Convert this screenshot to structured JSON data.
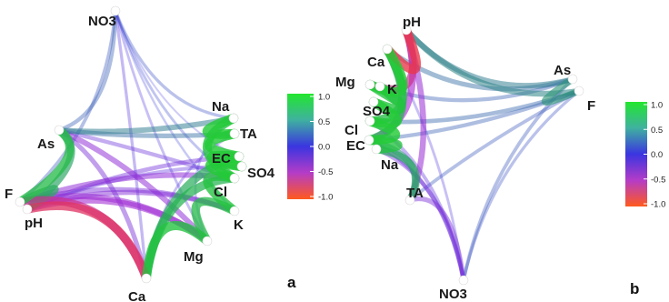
{
  "panels": [
    {
      "id": "a",
      "letter": "a",
      "nodes": [
        {
          "id": "NO3",
          "label": "NO3"
        },
        {
          "id": "Na",
          "label": "Na"
        },
        {
          "id": "TA",
          "label": "TA"
        },
        {
          "id": "EC",
          "label": "EC"
        },
        {
          "id": "SO4",
          "label": "SO4"
        },
        {
          "id": "Cl",
          "label": "Cl"
        },
        {
          "id": "K",
          "label": "K"
        },
        {
          "id": "Mg",
          "label": "Mg"
        },
        {
          "id": "Ca",
          "label": "Ca"
        },
        {
          "id": "pH",
          "label": "pH"
        },
        {
          "id": "F",
          "label": "F"
        },
        {
          "id": "As",
          "label": "As"
        }
      ],
      "edges": [
        {
          "from": "NO3",
          "to": "As",
          "r": 0.25
        },
        {
          "from": "NO3",
          "to": "F",
          "r": 0.2
        },
        {
          "from": "NO3",
          "to": "Na",
          "r": 0.15
        },
        {
          "from": "NO3",
          "to": "Cl",
          "r": 0.1
        },
        {
          "from": "NO3",
          "to": "K",
          "r": 0.05
        },
        {
          "from": "NO3",
          "to": "Mg",
          "r": -0.1
        },
        {
          "from": "NO3",
          "to": "Ca",
          "r": -0.15
        },
        {
          "from": "NO3",
          "to": "EC",
          "r": 0.0
        },
        {
          "from": "Na",
          "to": "TA",
          "r": 0.95
        },
        {
          "from": "TA",
          "to": "EC",
          "r": 0.95
        },
        {
          "from": "EC",
          "to": "SO4",
          "r": 0.95
        },
        {
          "from": "SO4",
          "to": "Cl",
          "r": 0.95
        },
        {
          "from": "Cl",
          "to": "K",
          "r": 0.9
        },
        {
          "from": "Na",
          "to": "Cl",
          "r": 0.9
        },
        {
          "from": "K",
          "to": "Mg",
          "r": 0.85
        },
        {
          "from": "Mg",
          "to": "Ca",
          "r": 0.9
        },
        {
          "from": "Ca",
          "to": "Cl",
          "r": 0.8
        },
        {
          "from": "Ca",
          "to": "EC",
          "r": 0.75
        },
        {
          "from": "As",
          "to": "F",
          "r": 0.85
        },
        {
          "from": "As",
          "to": "pH",
          "r": 0.7
        },
        {
          "from": "F",
          "to": "pH",
          "r": 0.75
        },
        {
          "from": "Ca",
          "to": "pH",
          "r": -0.85
        },
        {
          "from": "Ca",
          "to": "F",
          "r": -0.75
        },
        {
          "from": "As",
          "to": "Mg",
          "r": -0.45
        },
        {
          "from": "As",
          "to": "Ca",
          "r": -0.35
        },
        {
          "from": "As",
          "to": "Na",
          "r": 0.45
        },
        {
          "from": "As",
          "to": "TA",
          "r": 0.35
        },
        {
          "from": "As",
          "to": "Cl",
          "r": -0.25
        },
        {
          "from": "F",
          "to": "Cl",
          "r": -0.45
        },
        {
          "from": "F",
          "to": "Mg",
          "r": -0.5
        },
        {
          "from": "F",
          "to": "K",
          "r": -0.35
        },
        {
          "from": "pH",
          "to": "Mg",
          "r": -0.55
        },
        {
          "from": "pH",
          "to": "K",
          "r": -0.4
        },
        {
          "from": "pH",
          "to": "EC",
          "r": -0.3
        },
        {
          "from": "pH",
          "to": "SO4",
          "r": -0.2
        },
        {
          "from": "Na",
          "to": "Mg",
          "r": 0.05
        },
        {
          "from": "TA",
          "to": "Ca",
          "r": -0.1
        }
      ]
    },
    {
      "id": "b",
      "letter": "b",
      "nodes": [
        {
          "id": "pH",
          "label": "pH"
        },
        {
          "id": "As",
          "label": "As"
        },
        {
          "id": "F",
          "label": "F"
        },
        {
          "id": "NO3",
          "label": "NO3"
        },
        {
          "id": "TA",
          "label": "TA"
        },
        {
          "id": "Na",
          "label": "Na"
        },
        {
          "id": "EC",
          "label": "EC"
        },
        {
          "id": "Cl",
          "label": "Cl"
        },
        {
          "id": "SO4",
          "label": "SO4"
        },
        {
          "id": "K",
          "label": "K"
        },
        {
          "id": "Mg",
          "label": "Mg"
        },
        {
          "id": "Ca",
          "label": "Ca"
        }
      ],
      "edges": [
        {
          "from": "Ca",
          "to": "Mg",
          "r": 0.95
        },
        {
          "from": "Mg",
          "to": "K",
          "r": 0.9
        },
        {
          "from": "K",
          "to": "SO4",
          "r": 0.9
        },
        {
          "from": "SO4",
          "to": "Cl",
          "r": 0.95
        },
        {
          "from": "Cl",
          "to": "EC",
          "r": 0.95
        },
        {
          "from": "EC",
          "to": "Na",
          "r": 0.9
        },
        {
          "from": "Ca",
          "to": "Cl",
          "r": 0.85
        },
        {
          "from": "Ca",
          "to": "EC",
          "r": 0.8
        },
        {
          "from": "Na",
          "to": "TA",
          "r": 0.7
        },
        {
          "from": "EC",
          "to": "TA",
          "r": 0.55
        },
        {
          "from": "pH",
          "to": "Ca",
          "r": -0.9
        },
        {
          "from": "pH",
          "to": "Mg",
          "r": -0.75
        },
        {
          "from": "pH",
          "to": "EC",
          "r": -0.6
        },
        {
          "from": "pH",
          "to": "TA",
          "r": -0.5
        },
        {
          "from": "pH",
          "to": "As",
          "r": 0.45
        },
        {
          "from": "pH",
          "to": "F",
          "r": 0.5
        },
        {
          "from": "As",
          "to": "F",
          "r": 0.6
        },
        {
          "from": "As",
          "to": "Ca",
          "r": 0.35
        },
        {
          "from": "As",
          "to": "K",
          "r": 0.25
        },
        {
          "from": "As",
          "to": "NO3",
          "r": 0.2
        },
        {
          "from": "F",
          "to": "Cl",
          "r": 0.3
        },
        {
          "from": "F",
          "to": "EC",
          "r": 0.25
        },
        {
          "from": "F",
          "to": "TA",
          "r": 0.2
        },
        {
          "from": "F",
          "to": "NO3",
          "r": 0.15
        },
        {
          "from": "NO3",
          "to": "TA",
          "r": -0.35
        },
        {
          "from": "NO3",
          "to": "Na",
          "r": -0.3
        },
        {
          "from": "NO3",
          "to": "EC",
          "r": -0.25
        },
        {
          "from": "NO3",
          "to": "Cl",
          "r": -0.2
        },
        {
          "from": "NO3",
          "to": "Ca",
          "r": -0.1
        }
      ]
    }
  ],
  "legends": [
    {
      "ticks": [
        "1.0",
        "0.5",
        "0.0",
        "-0.5",
        "-1.0"
      ]
    },
    {
      "ticks": [
        "1.0",
        "0.5",
        "0.0",
        "-0.5",
        "-1.0"
      ]
    }
  ],
  "colors": {
    "positive": "#22d32e",
    "zero": "#3a35e0",
    "negative": "#ff3a1e",
    "node": "#ffffff"
  }
}
